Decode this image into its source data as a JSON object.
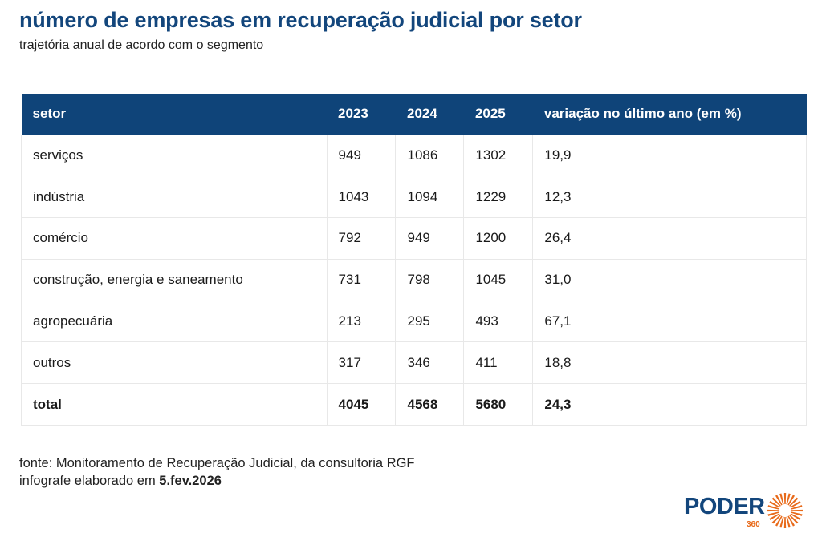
{
  "header": {
    "title": "número de empresas em recuperação judicial por setor",
    "subtitle": "trajetória anual de acordo com o segmento"
  },
  "chart_data": {
    "type": "table",
    "columns": [
      "setor",
      "2023",
      "2024",
      "2025",
      "variação no último ano (em %)"
    ],
    "rows": [
      [
        "serviços",
        "949",
        "1086",
        "1302",
        "19,9"
      ],
      [
        "indústria",
        "1043",
        "1094",
        "1229",
        "12,3"
      ],
      [
        "comércio",
        "792",
        "949",
        "1200",
        "26,4"
      ],
      [
        "construção, energia e saneamento",
        "731",
        "798",
        "1045",
        "31,0"
      ],
      [
        "agropecuária",
        "213",
        "295",
        "493",
        "67,1"
      ],
      [
        "outros",
        "317",
        "346",
        "411",
        "18,8"
      ]
    ],
    "total": [
      "total",
      "4045",
      "4568",
      "5680",
      "24,3"
    ]
  },
  "footer": {
    "source": "fonte: Monitoramento de Recuperação Judicial, da consultoria RGF",
    "made_prefix": "infografe elaborado em ",
    "made_date": "5.fev.2026"
  },
  "logo": {
    "name": "PODER",
    "number": "360",
    "colors": {
      "text": "#13467c",
      "accent": "#e86a1a"
    }
  },
  "colors": {
    "title": "#13467c",
    "header_bg": "#0f4479",
    "header_text": "#ffffff"
  }
}
